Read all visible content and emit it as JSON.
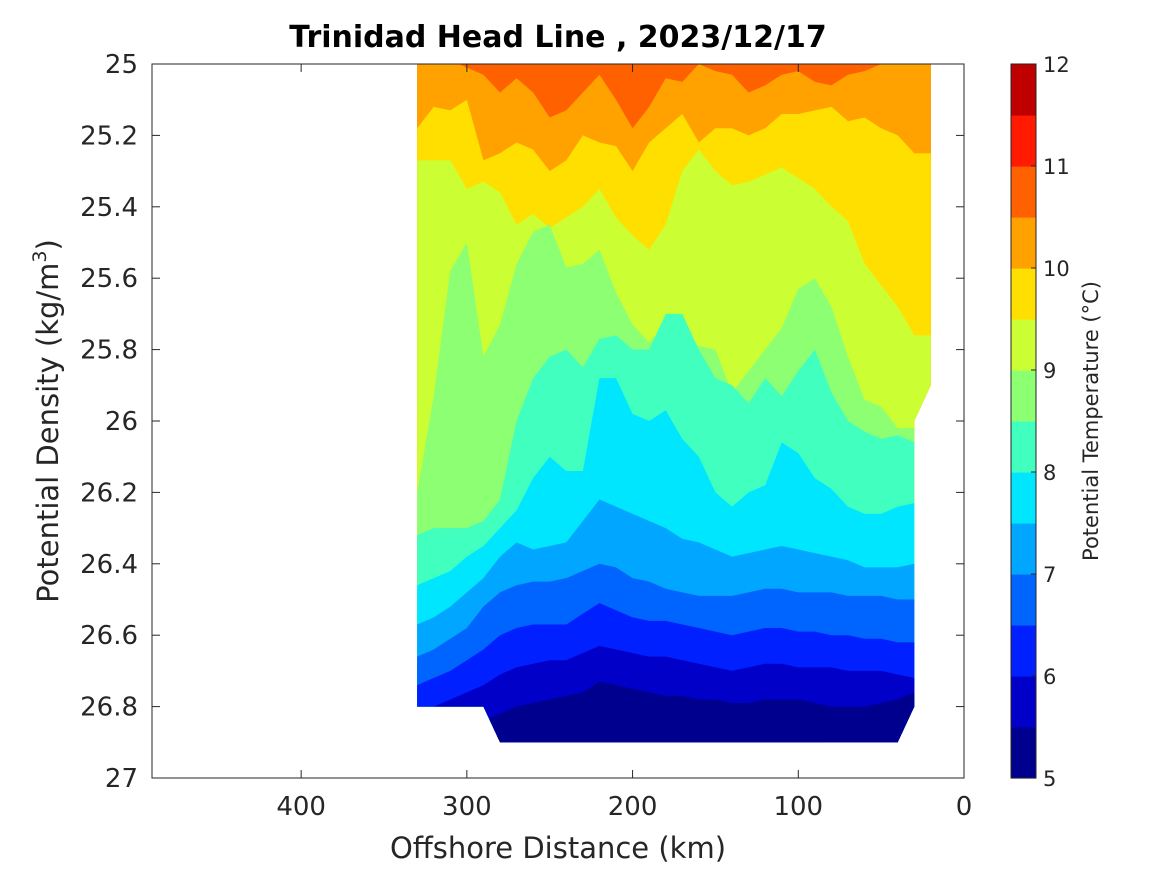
{
  "chart_data": {
    "type": "filled-contour",
    "title": "Trinidad Head Line , 2023/12/17",
    "xlabel": "Offshore Distance (km)",
    "ylabel": "Potential Density (kg/m",
    "ylabel_sup": "3",
    "ylabel_close": ")",
    "xlim": [
      490,
      0
    ],
    "ylim": [
      25,
      27
    ],
    "x_reversed": true,
    "y_reversed": true,
    "x_ticks": [
      "400",
      "300",
      "200",
      "100",
      "0"
    ],
    "x_tick_values": [
      400,
      300,
      200,
      100,
      0
    ],
    "y_ticks": [
      "25",
      "25.2",
      "25.4",
      "25.6",
      "25.8",
      "26",
      "26.2",
      "26.4",
      "26.6",
      "26.8",
      "27"
    ],
    "y_tick_values": [
      25,
      25.2,
      25.4,
      25.6,
      25.8,
      26,
      26.2,
      26.4,
      26.6,
      26.8,
      27
    ],
    "colorbar": {
      "label": "Potential Temperature (°C)",
      "ticks": [
        "5",
        "6",
        "7",
        "8",
        "9",
        "10",
        "11",
        "12"
      ],
      "tick_values": [
        5,
        6,
        7,
        8,
        9,
        10,
        11,
        12
      ],
      "range": [
        5,
        12
      ],
      "level_step": 0.5,
      "colors": [
        "#00008f",
        "#0000c8",
        "#0020ff",
        "#0064ff",
        "#00a6ff",
        "#00e6ff",
        "#40ffbf",
        "#8cff72",
        "#ccff33",
        "#ffdf00",
        "#ffa200",
        "#ff6000",
        "#ff1a00",
        "#c00000"
      ]
    },
    "x": [
      330,
      320,
      310,
      300,
      290,
      280,
      270,
      260,
      250,
      240,
      230,
      220,
      210,
      200,
      190,
      180,
      170,
      160,
      150,
      140,
      130,
      120,
      110,
      100,
      90,
      80,
      70,
      60,
      50,
      40,
      30
    ],
    "isotherms": [
      {
        "level": 10.5,
        "depth": [
          25.0,
          25.0,
          24.99,
          25.01,
          25.03,
          25.08,
          25.04,
          25.08,
          25.15,
          25.13,
          25.08,
          25.03,
          25.1,
          25.18,
          25.12,
          25.04,
          25.05,
          25.0,
          25.02,
          25.03,
          25.08,
          25.06,
          25.03,
          25.02,
          25.05,
          25.06,
          25.03,
          25.02,
          25.0,
          25.0,
          24.99
        ]
      },
      {
        "level": 10.0,
        "depth": [
          25.18,
          25.12,
          25.13,
          25.1,
          25.27,
          25.25,
          25.22,
          25.24,
          25.3,
          25.27,
          25.2,
          25.22,
          25.23,
          25.3,
          25.22,
          25.18,
          25.14,
          25.22,
          25.18,
          25.18,
          25.2,
          25.18,
          25.14,
          25.14,
          25.13,
          25.12,
          25.16,
          25.15,
          25.18,
          25.2,
          25.25
        ]
      },
      {
        "level": 9.5,
        "depth": [
          25.27,
          25.27,
          25.27,
          25.35,
          25.33,
          25.36,
          25.45,
          25.42,
          25.46,
          25.43,
          25.4,
          25.35,
          25.43,
          25.48,
          25.52,
          25.45,
          25.3,
          25.24,
          25.3,
          25.34,
          25.33,
          25.31,
          25.29,
          25.32,
          25.35,
          25.4,
          25.44,
          25.56,
          25.62,
          25.68,
          25.76
        ]
      },
      {
        "level": 9.0,
        "depth": [
          26.2,
          25.93,
          25.58,
          25.5,
          25.82,
          25.73,
          25.56,
          25.47,
          25.45,
          25.57,
          25.56,
          25.52,
          25.64,
          25.73,
          25.78,
          25.73,
          25.77,
          25.79,
          25.8,
          25.92,
          25.86,
          25.8,
          25.74,
          25.63,
          25.6,
          25.68,
          25.82,
          25.94,
          25.96,
          26.02,
          26.02
        ]
      },
      {
        "level": 8.5,
        "depth": [
          26.32,
          26.3,
          26.3,
          26.3,
          26.28,
          26.22,
          26.0,
          25.88,
          25.82,
          25.8,
          25.85,
          25.77,
          25.76,
          25.8,
          25.8,
          25.7,
          25.7,
          25.8,
          25.88,
          25.9,
          25.95,
          25.88,
          25.93,
          25.86,
          25.8,
          25.92,
          26.0,
          26.03,
          26.05,
          26.04,
          26.06
        ]
      },
      {
        "level": 8.0,
        "depth": [
          26.46,
          26.44,
          26.42,
          26.38,
          26.35,
          26.3,
          26.25,
          26.16,
          26.1,
          26.14,
          26.14,
          25.88,
          25.88,
          25.98,
          26.0,
          25.97,
          26.05,
          26.1,
          26.2,
          26.24,
          26.2,
          26.18,
          26.06,
          26.09,
          26.16,
          26.19,
          26.24,
          26.26,
          26.26,
          26.24,
          26.23
        ]
      },
      {
        "level": 7.5,
        "depth": [
          26.57,
          26.55,
          26.52,
          26.48,
          26.44,
          26.38,
          26.34,
          26.36,
          26.35,
          26.34,
          26.28,
          26.22,
          26.24,
          26.26,
          26.28,
          26.3,
          26.33,
          26.34,
          26.36,
          26.38,
          26.37,
          26.36,
          26.35,
          26.36,
          26.37,
          26.38,
          26.39,
          26.41,
          26.41,
          26.41,
          26.4
        ]
      },
      {
        "level": 7.0,
        "depth": [
          26.66,
          26.64,
          26.61,
          26.58,
          26.52,
          26.48,
          26.46,
          26.45,
          26.45,
          26.44,
          26.42,
          26.4,
          26.41,
          26.44,
          26.45,
          26.47,
          26.48,
          26.49,
          26.49,
          26.49,
          26.48,
          26.47,
          26.47,
          26.48,
          26.48,
          26.48,
          26.49,
          26.49,
          26.49,
          26.5,
          26.5
        ]
      },
      {
        "level": 6.5,
        "depth": [
          26.74,
          26.72,
          26.7,
          26.67,
          26.64,
          26.6,
          26.58,
          26.57,
          26.57,
          26.57,
          26.54,
          26.51,
          26.53,
          26.55,
          26.56,
          26.56,
          26.57,
          26.58,
          26.59,
          26.6,
          26.59,
          26.58,
          26.58,
          26.59,
          26.59,
          26.6,
          26.6,
          26.61,
          26.61,
          26.62,
          26.62
        ]
      },
      {
        "level": 6.0,
        "depth": [
          26.8,
          26.8,
          26.78,
          26.76,
          26.74,
          26.71,
          26.69,
          26.68,
          26.67,
          26.67,
          26.65,
          26.63,
          26.64,
          26.65,
          26.66,
          26.66,
          26.67,
          26.68,
          26.69,
          26.7,
          26.69,
          26.68,
          26.68,
          26.69,
          26.69,
          26.69,
          26.7,
          26.7,
          26.7,
          26.71,
          26.72
        ]
      },
      {
        "level": 5.5,
        "depth": [
          26.9,
          26.9,
          26.9,
          26.9,
          26.84,
          26.82,
          26.8,
          26.79,
          26.78,
          26.77,
          26.76,
          26.73,
          26.74,
          26.75,
          26.76,
          26.77,
          26.77,
          26.78,
          26.78,
          26.79,
          26.79,
          26.78,
          26.78,
          26.78,
          26.79,
          26.8,
          26.8,
          26.8,
          26.79,
          26.78,
          26.76
        ]
      },
      {
        "level": 5.0,
        "depth": [
          26.9,
          26.9,
          26.9,
          26.9,
          26.9,
          26.88,
          26.87,
          26.86,
          26.86,
          26.86,
          26.84,
          26.82,
          26.83,
          26.85,
          26.86,
          26.87,
          26.87,
          26.88,
          26.88,
          26.89,
          26.88,
          26.88,
          26.88,
          26.88,
          26.89,
          26.9,
          26.9,
          26.9,
          26.9,
          26.9,
          26.9
        ]
      }
    ],
    "coverage_polygon": [
      [
        330,
        25.0
      ],
      [
        20,
        25.0
      ],
      [
        20,
        25.9
      ],
      [
        30,
        26.0
      ],
      [
        30,
        26.8
      ],
      [
        40,
        26.9
      ],
      [
        280,
        26.9
      ],
      [
        290,
        26.8
      ],
      [
        330,
        26.8
      ]
    ]
  }
}
